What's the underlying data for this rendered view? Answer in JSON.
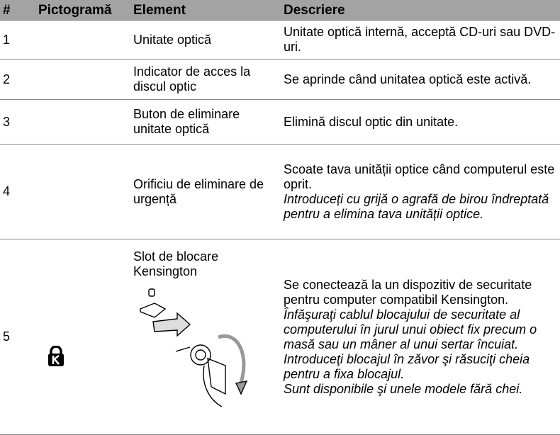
{
  "table": {
    "header": [
      "#",
      "Pictogramă",
      "Element",
      "Descriere"
    ],
    "rows": [
      {
        "number": "1",
        "element": "Unitate optică",
        "description": "Unitate optică internă, acceptă CD-uri sau DVD-uri.",
        "notes": []
      },
      {
        "number": "2",
        "element": "Indicator de acces la discul optic",
        "description": "Se aprinde când unitatea optică este activă.",
        "notes": []
      },
      {
        "number": "3",
        "element": "Buton de eliminare unitate optică",
        "description": "Elimină discul optic din unitate.",
        "notes": []
      },
      {
        "number": "4",
        "element": "Orificiu de eliminare de urgență",
        "description": "Scoate tava unității optice când computerul este oprit.",
        "notes": [
          "Introduceți cu grijă o agrafă de birou îndreptată pentru a elimina tava unității optice."
        ]
      },
      {
        "number": "5",
        "element": "Slot de blocare Kensington",
        "description": "Se conectează la un dispozitiv de securitate pentru computer compatibil Kensington.",
        "notes": [
          "Înfăşuraţi cablul blocajului de securitate al computerului în jurul unui obiect fix precum o masă sau un mâner al unui sertar încuiat.",
          "Introduceţi blocajul în zăvor şi răsuciţi cheia pentru a fixa blocajul.",
          "Sunt disponibile şi unele modele fără chei."
        ]
      }
    ]
  }
}
